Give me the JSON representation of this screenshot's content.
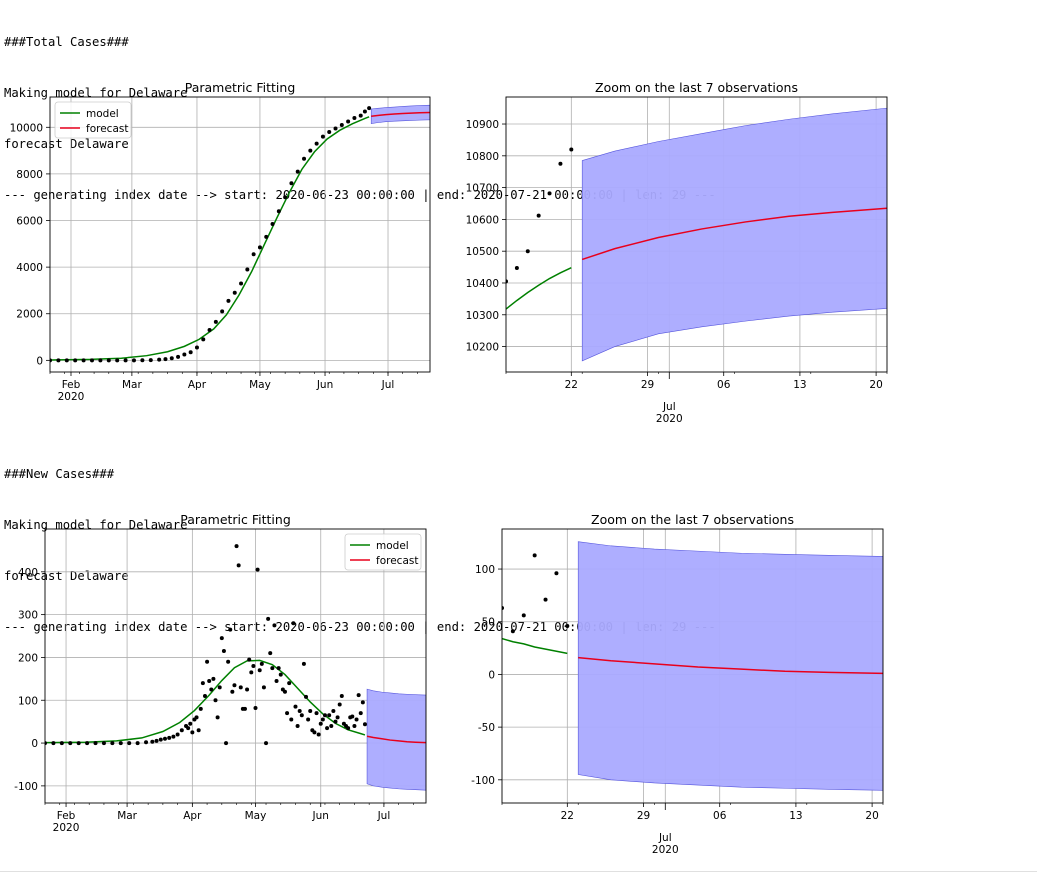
{
  "log_blocks": [
    {
      "lines": [
        "###Total Cases###",
        "Making model for Delaware",
        "forecast Delaware",
        "--- generating index date --> start: 2020-06-23 00:00:00 | end: 2020-07-21 00:00:00 | len: 29 ---"
      ]
    },
    {
      "lines": [
        "###New Cases###",
        "Making model for Delaware",
        "forecast Delaware",
        "--- generating index date --> start: 2020-06-23 00:00:00 | end: 2020-07-21 00:00:00 | len: 29 ---"
      ]
    }
  ],
  "colors": {
    "model": "#008000",
    "forecast": "#e8001c",
    "band": "#aaaaff",
    "band_edge": "#5555dd",
    "observed": "#000000",
    "grid": "#b0b0b0"
  },
  "chart_data": [
    {
      "type": "line",
      "title": "Parametric Fitting",
      "legend": {
        "position": "top-left",
        "entries": [
          "model",
          "forecast"
        ]
      },
      "grid": true,
      "xlim": [
        "2020-01-22",
        "2020-07-21"
      ],
      "ylim": [
        -500,
        11300
      ],
      "x_ticks": [
        {
          "date": "2020-02-01",
          "label": "Feb",
          "sublabel": "2020"
        },
        {
          "date": "2020-03-01",
          "label": "Mar",
          "sublabel": ""
        },
        {
          "date": "2020-04-01",
          "label": "Apr",
          "sublabel": ""
        },
        {
          "date": "2020-05-01",
          "label": "May",
          "sublabel": ""
        },
        {
          "date": "2020-06-01",
          "label": "Jun",
          "sublabel": ""
        },
        {
          "date": "2020-07-01",
          "label": "Jul",
          "sublabel": ""
        }
      ],
      "y_ticks": [
        0,
        2000,
        4000,
        6000,
        8000,
        10000
      ],
      "observed": {
        "x": [
          "2020-01-22",
          "2020-01-26",
          "2020-01-30",
          "2020-02-03",
          "2020-02-07",
          "2020-02-11",
          "2020-02-15",
          "2020-02-19",
          "2020-02-23",
          "2020-02-27",
          "2020-03-02",
          "2020-03-06",
          "2020-03-10",
          "2020-03-14",
          "2020-03-17",
          "2020-03-20",
          "2020-03-23",
          "2020-03-26",
          "2020-03-29",
          "2020-04-01",
          "2020-04-04",
          "2020-04-07",
          "2020-04-10",
          "2020-04-13",
          "2020-04-16",
          "2020-04-19",
          "2020-04-22",
          "2020-04-25",
          "2020-04-28",
          "2020-05-01",
          "2020-05-04",
          "2020-05-07",
          "2020-05-10",
          "2020-05-13",
          "2020-05-16",
          "2020-05-19",
          "2020-05-22",
          "2020-05-25",
          "2020-05-28",
          "2020-05-31",
          "2020-06-03",
          "2020-06-06",
          "2020-06-09",
          "2020-06-12",
          "2020-06-15",
          "2020-06-18",
          "2020-06-20",
          "2020-06-22"
        ],
        "y": [
          0,
          0,
          0,
          0,
          0,
          0,
          0,
          0,
          0,
          0,
          0,
          5,
          10,
          30,
          50,
          90,
          150,
          250,
          350,
          550,
          900,
          1300,
          1650,
          2100,
          2550,
          2900,
          3300,
          3900,
          4550,
          4850,
          5300,
          5850,
          6400,
          7000,
          7600,
          8100,
          8650,
          9000,
          9300,
          9600,
          9800,
          9950,
          10100,
          10250,
          10400,
          10500,
          10680,
          10820
        ]
      },
      "model": {
        "x": [
          "2020-01-22",
          "2020-02-10",
          "2020-02-25",
          "2020-03-08",
          "2020-03-18",
          "2020-03-26",
          "2020-04-02",
          "2020-04-09",
          "2020-04-15",
          "2020-04-21",
          "2020-04-27",
          "2020-05-03",
          "2020-05-09",
          "2020-05-15",
          "2020-05-21",
          "2020-05-27",
          "2020-06-02",
          "2020-06-08",
          "2020-06-14",
          "2020-06-20",
          "2020-06-22"
        ],
        "y": [
          15,
          40,
          90,
          200,
          370,
          600,
          900,
          1350,
          1950,
          2800,
          3800,
          4950,
          6100,
          7200,
          8200,
          8950,
          9500,
          9870,
          10150,
          10380,
          10450
        ]
      },
      "forecast": {
        "x": [
          "2020-06-23",
          "2020-06-26",
          "2020-06-30",
          "2020-07-04",
          "2020-07-08",
          "2020-07-12",
          "2020-07-16",
          "2020-07-21"
        ],
        "y": [
          10474,
          10508,
          10543,
          10570,
          10592,
          10610,
          10622,
          10635
        ]
      },
      "band": {
        "x": [
          "2020-06-23",
          "2020-06-26",
          "2020-06-30",
          "2020-07-04",
          "2020-07-08",
          "2020-07-12",
          "2020-07-16",
          "2020-07-21"
        ],
        "lower": [
          10155,
          10200,
          10240,
          10262,
          10280,
          10296,
          10308,
          10320
        ],
        "upper": [
          10785,
          10815,
          10845,
          10870,
          10895,
          10915,
          10932,
          10950
        ]
      }
    },
    {
      "type": "line",
      "title": "Zoom on the last 7 observations",
      "grid": true,
      "xlim": [
        "2020-06-16",
        "2020-07-21"
      ],
      "ylim": [
        10120,
        10985
      ],
      "x_ticks": [
        {
          "date": "2020-06-22",
          "label": "22",
          "sublabel": ""
        },
        {
          "date": "2020-06-29",
          "label": "29",
          "sublabel": ""
        },
        {
          "date": "2020-07-06",
          "label": "06",
          "sublabel": ""
        },
        {
          "date": "2020-07-13",
          "label": "13",
          "sublabel": ""
        },
        {
          "date": "2020-07-20",
          "label": "20",
          "sublabel": ""
        }
      ],
      "month_tick": {
        "date": "2020-07-01",
        "label": "Jul",
        "sublabel": "2020"
      },
      "y_ticks": [
        10200,
        10300,
        10400,
        10500,
        10600,
        10700,
        10800,
        10900
      ],
      "observed": {
        "x": [
          "2020-06-16",
          "2020-06-17",
          "2020-06-18",
          "2020-06-19",
          "2020-06-20",
          "2020-06-21",
          "2020-06-22"
        ],
        "y": [
          10405,
          10447,
          10500,
          10612,
          10682,
          10775,
          10820
        ]
      },
      "model": {
        "x": [
          "2020-06-16",
          "2020-06-17",
          "2020-06-18",
          "2020-06-19",
          "2020-06-20",
          "2020-06-21",
          "2020-06-22"
        ],
        "y": [
          10318,
          10345,
          10370,
          10393,
          10414,
          10432,
          10448
        ]
      },
      "forecast": {
        "x": [
          "2020-06-23",
          "2020-06-26",
          "2020-06-30",
          "2020-07-04",
          "2020-07-08",
          "2020-07-12",
          "2020-07-16",
          "2020-07-21"
        ],
        "y": [
          10474,
          10508,
          10543,
          10570,
          10592,
          10610,
          10622,
          10635
        ]
      },
      "band": {
        "x": [
          "2020-06-23",
          "2020-06-26",
          "2020-06-30",
          "2020-07-04",
          "2020-07-08",
          "2020-07-12",
          "2020-07-16",
          "2020-07-21"
        ],
        "lower": [
          10155,
          10200,
          10240,
          10262,
          10280,
          10296,
          10308,
          10320
        ],
        "upper": [
          10785,
          10815,
          10845,
          10870,
          10895,
          10915,
          10932,
          10950
        ]
      }
    },
    {
      "type": "line",
      "title": "Parametric Fitting",
      "legend": {
        "position": "top-right",
        "entries": [
          "model",
          "forecast"
        ]
      },
      "grid": true,
      "xlim": [
        "2020-01-22",
        "2020-07-21"
      ],
      "ylim": [
        -140,
        500
      ],
      "x_ticks": [
        {
          "date": "2020-02-01",
          "label": "Feb",
          "sublabel": "2020"
        },
        {
          "date": "2020-03-01",
          "label": "Mar",
          "sublabel": ""
        },
        {
          "date": "2020-04-01",
          "label": "Apr",
          "sublabel": ""
        },
        {
          "date": "2020-05-01",
          "label": "May",
          "sublabel": ""
        },
        {
          "date": "2020-06-01",
          "label": "Jun",
          "sublabel": ""
        },
        {
          "date": "2020-07-01",
          "label": "Jul",
          "sublabel": ""
        }
      ],
      "y_ticks": [
        -100,
        0,
        100,
        200,
        300,
        400
      ],
      "observed": {
        "x": [
          "2020-01-22",
          "2020-01-26",
          "2020-01-30",
          "2020-02-03",
          "2020-02-07",
          "2020-02-11",
          "2020-02-15",
          "2020-02-19",
          "2020-02-23",
          "2020-02-27",
          "2020-03-02",
          "2020-03-06",
          "2020-03-10",
          "2020-03-13",
          "2020-03-15",
          "2020-03-17",
          "2020-03-19",
          "2020-03-21",
          "2020-03-23",
          "2020-03-25",
          "2020-03-27",
          "2020-03-29",
          "2020-03-30",
          "2020-03-31",
          "2020-04-01",
          "2020-04-02",
          "2020-04-03",
          "2020-04-04",
          "2020-04-05",
          "2020-04-06",
          "2020-04-07",
          "2020-04-08",
          "2020-04-09",
          "2020-04-10",
          "2020-04-11",
          "2020-04-12",
          "2020-04-13",
          "2020-04-14",
          "2020-04-15",
          "2020-04-16",
          "2020-04-17",
          "2020-04-18",
          "2020-04-19",
          "2020-04-20",
          "2020-04-21",
          "2020-04-22",
          "2020-04-23",
          "2020-04-24",
          "2020-04-25",
          "2020-04-26",
          "2020-04-27",
          "2020-04-28",
          "2020-04-29",
          "2020-04-30",
          "2020-05-01",
          "2020-05-02",
          "2020-05-03",
          "2020-05-04",
          "2020-05-05",
          "2020-05-06",
          "2020-05-07",
          "2020-05-08",
          "2020-05-09",
          "2020-05-10",
          "2020-05-11",
          "2020-05-12",
          "2020-05-13",
          "2020-05-14",
          "2020-05-15",
          "2020-05-16",
          "2020-05-17",
          "2020-05-18",
          "2020-05-19",
          "2020-05-20",
          "2020-05-21",
          "2020-05-22",
          "2020-05-23",
          "2020-05-24",
          "2020-05-25",
          "2020-05-26",
          "2020-05-27",
          "2020-05-28",
          "2020-05-29",
          "2020-05-30",
          "2020-05-31",
          "2020-06-01",
          "2020-06-02",
          "2020-06-03",
          "2020-06-04",
          "2020-06-05",
          "2020-06-06",
          "2020-06-07",
          "2020-06-08",
          "2020-06-09",
          "2020-06-10",
          "2020-06-11",
          "2020-06-12",
          "2020-06-13",
          "2020-06-14",
          "2020-06-15",
          "2020-06-16",
          "2020-06-17",
          "2020-06-18",
          "2020-06-19",
          "2020-06-20",
          "2020-06-21",
          "2020-06-22"
        ],
        "y": [
          0,
          0,
          0,
          0,
          0,
          0,
          0,
          0,
          0,
          0,
          0,
          0,
          2,
          3,
          5,
          8,
          10,
          12,
          15,
          20,
          30,
          40,
          35,
          45,
          25,
          55,
          60,
          30,
          80,
          140,
          110,
          190,
          145,
          125,
          150,
          100,
          60,
          130,
          245,
          215,
          0,
          190,
          265,
          120,
          135,
          460,
          415,
          130,
          80,
          80,
          125,
          195,
          165,
          180,
          82,
          405,
          170,
          185,
          130,
          0,
          290,
          210,
          175,
          275,
          145,
          175,
          160,
          125,
          120,
          70,
          140,
          55,
          280,
          85,
          40,
          75,
          65,
          185,
          108,
          55,
          75,
          30,
          25,
          70,
          20,
          45,
          55,
          65,
          35,
          65,
          40,
          75,
          50,
          60,
          90,
          110,
          45,
          40,
          35,
          60,
          62,
          40,
          55,
          112,
          70,
          95,
          44
        ]
      },
      "model": {
        "x": [
          "2020-01-22",
          "2020-02-10",
          "2020-02-25",
          "2020-03-08",
          "2020-03-18",
          "2020-03-26",
          "2020-04-02",
          "2020-04-09",
          "2020-04-15",
          "2020-04-21",
          "2020-04-27",
          "2020-05-03",
          "2020-05-09",
          "2020-05-15",
          "2020-05-21",
          "2020-05-27",
          "2020-06-02",
          "2020-06-08",
          "2020-06-14",
          "2020-06-20",
          "2020-06-22"
        ],
        "y": [
          1,
          2,
          5,
          12,
          27,
          48,
          76,
          112,
          146,
          176,
          192,
          193,
          183,
          160,
          128,
          96,
          68,
          46,
          31,
          22,
          19
        ]
      },
      "forecast": {
        "x": [
          "2020-06-23",
          "2020-06-26",
          "2020-06-30",
          "2020-07-04",
          "2020-07-08",
          "2020-07-12",
          "2020-07-16",
          "2020-07-21"
        ],
        "y": [
          16,
          13,
          10,
          7,
          5,
          3,
          2,
          1
        ]
      },
      "band": {
        "x": [
          "2020-06-23",
          "2020-06-26",
          "2020-06-30",
          "2020-07-04",
          "2020-07-08",
          "2020-07-12",
          "2020-07-16",
          "2020-07-21"
        ],
        "lower": [
          -95,
          -100,
          -103,
          -105,
          -107,
          -108,
          -109,
          -110
        ],
        "upper": [
          126,
          122,
          119,
          117,
          115,
          114,
          113,
          112
        ]
      }
    },
    {
      "type": "line",
      "title": "Zoom on the last 7 observations",
      "grid": true,
      "xlim": [
        "2020-06-16",
        "2020-07-21"
      ],
      "ylim": [
        -122,
        138
      ],
      "x_ticks": [
        {
          "date": "2020-06-22",
          "label": "22",
          "sublabel": ""
        },
        {
          "date": "2020-06-29",
          "label": "29",
          "sublabel": ""
        },
        {
          "date": "2020-07-06",
          "label": "06",
          "sublabel": ""
        },
        {
          "date": "2020-07-13",
          "label": "13",
          "sublabel": ""
        },
        {
          "date": "2020-07-20",
          "label": "20",
          "sublabel": ""
        }
      ],
      "month_tick": {
        "date": "2020-07-01",
        "label": "Jul",
        "sublabel": "2020"
      },
      "y_ticks": [
        -100,
        -50,
        0,
        50,
        100
      ],
      "observed": {
        "x": [
          "2020-06-16",
          "2020-06-17",
          "2020-06-18",
          "2020-06-19",
          "2020-06-20",
          "2020-06-21",
          "2020-06-22"
        ],
        "y": [
          63,
          41,
          56,
          113,
          71,
          96,
          46
        ]
      },
      "model": {
        "x": [
          "2020-06-16",
          "2020-06-17",
          "2020-06-18",
          "2020-06-19",
          "2020-06-20",
          "2020-06-21",
          "2020-06-22"
        ],
        "y": [
          34,
          31,
          29,
          26,
          24,
          22,
          20
        ]
      },
      "forecast": {
        "x": [
          "2020-06-23",
          "2020-06-26",
          "2020-06-30",
          "2020-07-04",
          "2020-07-08",
          "2020-07-12",
          "2020-07-16",
          "2020-07-21"
        ],
        "y": [
          16,
          13,
          10,
          7,
          5,
          3,
          2,
          1
        ]
      },
      "band": {
        "x": [
          "2020-06-23",
          "2020-06-26",
          "2020-06-30",
          "2020-07-04",
          "2020-07-08",
          "2020-07-12",
          "2020-07-16",
          "2020-07-21"
        ],
        "lower": [
          -95,
          -100,
          -103,
          -105,
          -107,
          -108,
          -109,
          -110
        ],
        "upper": [
          126,
          122,
          119,
          117,
          115,
          114,
          113,
          112
        ]
      }
    }
  ]
}
